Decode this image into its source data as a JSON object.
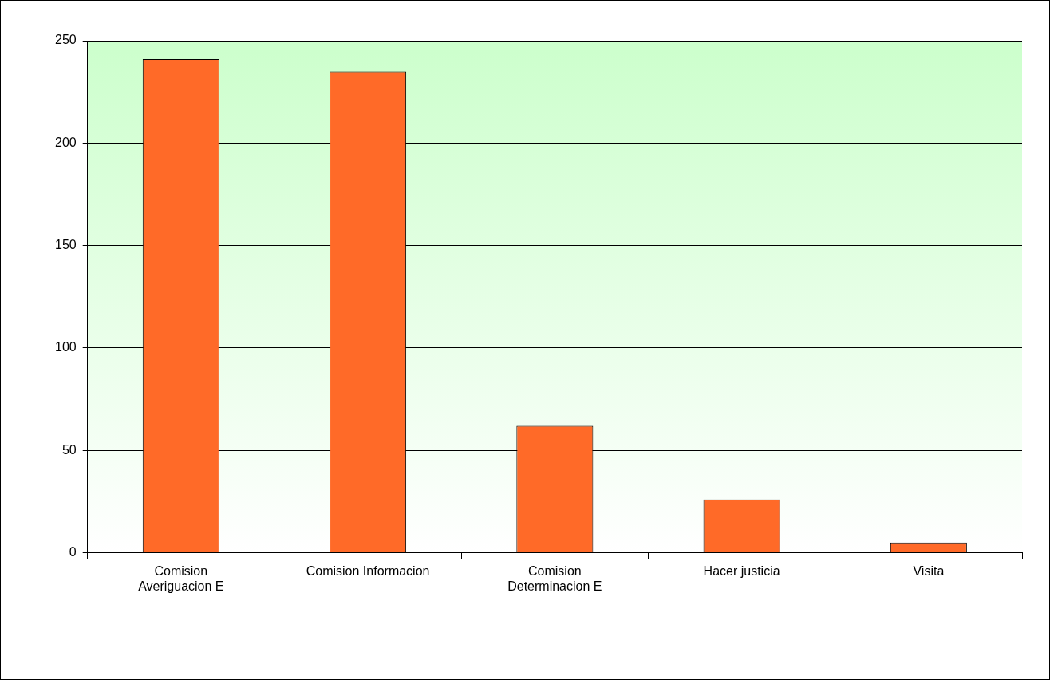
{
  "chart_data": {
    "type": "bar",
    "categories": [
      "Comision Averiguacion E",
      "Comision Informacion",
      "Comision Determinacion E",
      "Hacer justicia",
      "Visita"
    ],
    "values": [
      241,
      235,
      62,
      26,
      5
    ],
    "color": "#ff6a28",
    "ylim": [
      0,
      250
    ],
    "yticks": [
      0,
      50,
      100,
      150,
      200,
      250
    ],
    "grid": "y",
    "legend": false
  }
}
